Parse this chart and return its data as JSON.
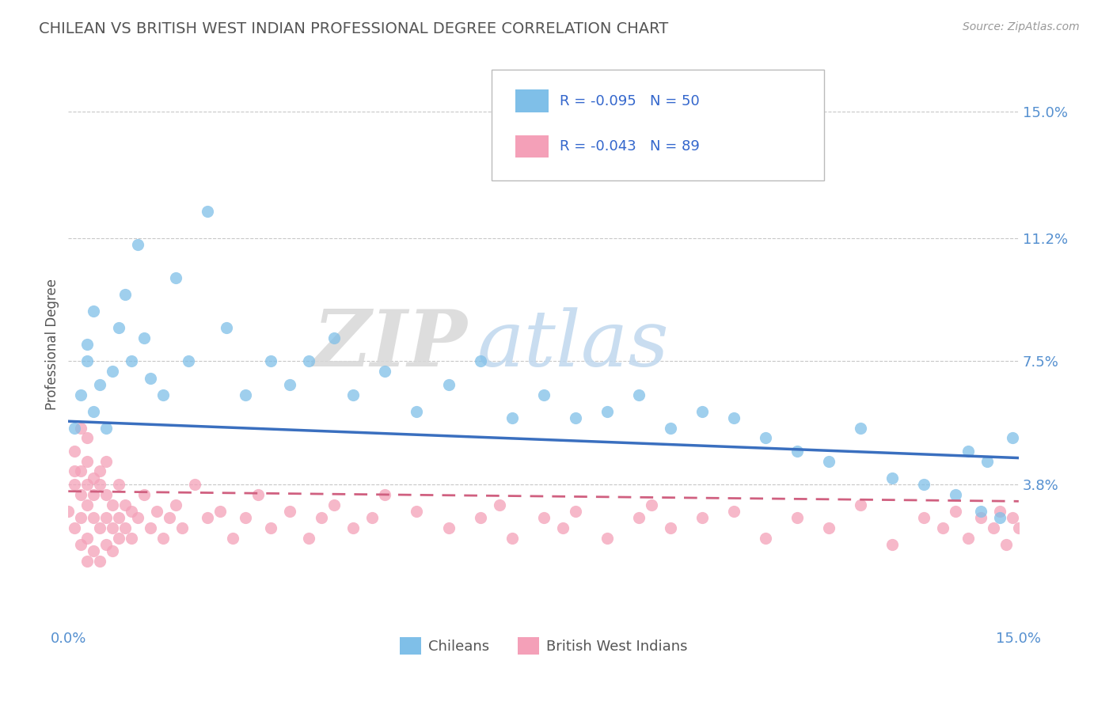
{
  "title": "CHILEAN VS BRITISH WEST INDIAN PROFESSIONAL DEGREE CORRELATION CHART",
  "source": "Source: ZipAtlas.com",
  "ylabel": "Professional Degree",
  "xlim": [
    0.0,
    0.15
  ],
  "ylim": [
    -0.005,
    0.165
  ],
  "yticks": [
    0.038,
    0.075,
    0.112,
    0.15
  ],
  "ytick_labels": [
    "3.8%",
    "7.5%",
    "11.2%",
    "15.0%"
  ],
  "xticks": [
    0.0,
    0.15
  ],
  "xtick_labels": [
    "0.0%",
    "15.0%"
  ],
  "chilean_color": "#7fbfe8",
  "bwi_color": "#f4a0b8",
  "chilean_line_color": "#3a6fbf",
  "bwi_line_color": "#d06080",
  "legend_r_chilean": "R = -0.095",
  "legend_n_chilean": "N = 50",
  "legend_r_bwi": "R = -0.043",
  "legend_n_bwi": "N = 89",
  "legend_label_chilean": "Chileans",
  "legend_label_bwi": "British West Indians",
  "chilean_x": [
    0.001,
    0.002,
    0.003,
    0.003,
    0.004,
    0.004,
    0.005,
    0.006,
    0.007,
    0.008,
    0.009,
    0.01,
    0.011,
    0.012,
    0.013,
    0.015,
    0.017,
    0.019,
    0.022,
    0.025,
    0.028,
    0.032,
    0.035,
    0.038,
    0.042,
    0.045,
    0.05,
    0.055,
    0.06,
    0.065,
    0.07,
    0.075,
    0.08,
    0.085,
    0.09,
    0.095,
    0.1,
    0.105,
    0.11,
    0.115,
    0.12,
    0.125,
    0.13,
    0.135,
    0.14,
    0.142,
    0.144,
    0.145,
    0.147,
    0.149
  ],
  "chilean_y": [
    0.055,
    0.065,
    0.08,
    0.075,
    0.09,
    0.06,
    0.068,
    0.055,
    0.072,
    0.085,
    0.095,
    0.075,
    0.11,
    0.082,
    0.07,
    0.065,
    0.1,
    0.075,
    0.12,
    0.085,
    0.065,
    0.075,
    0.068,
    0.075,
    0.082,
    0.065,
    0.072,
    0.06,
    0.068,
    0.075,
    0.058,
    0.065,
    0.058,
    0.06,
    0.065,
    0.055,
    0.06,
    0.058,
    0.052,
    0.048,
    0.045,
    0.055,
    0.04,
    0.038,
    0.035,
    0.048,
    0.03,
    0.045,
    0.028,
    0.052
  ],
  "bwi_x": [
    0.0,
    0.001,
    0.001,
    0.001,
    0.001,
    0.002,
    0.002,
    0.002,
    0.002,
    0.002,
    0.003,
    0.003,
    0.003,
    0.003,
    0.003,
    0.003,
    0.004,
    0.004,
    0.004,
    0.004,
    0.005,
    0.005,
    0.005,
    0.005,
    0.006,
    0.006,
    0.006,
    0.006,
    0.007,
    0.007,
    0.007,
    0.008,
    0.008,
    0.008,
    0.009,
    0.009,
    0.01,
    0.01,
    0.011,
    0.012,
    0.013,
    0.014,
    0.015,
    0.016,
    0.017,
    0.018,
    0.02,
    0.022,
    0.024,
    0.026,
    0.028,
    0.03,
    0.032,
    0.035,
    0.038,
    0.04,
    0.042,
    0.045,
    0.048,
    0.05,
    0.055,
    0.06,
    0.065,
    0.068,
    0.07,
    0.075,
    0.078,
    0.08,
    0.085,
    0.09,
    0.092,
    0.095,
    0.1,
    0.105,
    0.11,
    0.115,
    0.12,
    0.125,
    0.13,
    0.135,
    0.138,
    0.14,
    0.142,
    0.144,
    0.146,
    0.147,
    0.148,
    0.149,
    0.15
  ],
  "bwi_y": [
    0.03,
    0.038,
    0.042,
    0.025,
    0.048,
    0.035,
    0.028,
    0.042,
    0.02,
    0.055,
    0.032,
    0.045,
    0.022,
    0.038,
    0.015,
    0.052,
    0.028,
    0.04,
    0.018,
    0.035,
    0.025,
    0.038,
    0.015,
    0.042,
    0.028,
    0.035,
    0.02,
    0.045,
    0.025,
    0.032,
    0.018,
    0.028,
    0.038,
    0.022,
    0.032,
    0.025,
    0.03,
    0.022,
    0.028,
    0.035,
    0.025,
    0.03,
    0.022,
    0.028,
    0.032,
    0.025,
    0.038,
    0.028,
    0.03,
    0.022,
    0.028,
    0.035,
    0.025,
    0.03,
    0.022,
    0.028,
    0.032,
    0.025,
    0.028,
    0.035,
    0.03,
    0.025,
    0.028,
    0.032,
    0.022,
    0.028,
    0.025,
    0.03,
    0.022,
    0.028,
    0.032,
    0.025,
    0.028,
    0.03,
    0.022,
    0.028,
    0.025,
    0.032,
    0.02,
    0.028,
    0.025,
    0.03,
    0.022,
    0.028,
    0.025,
    0.03,
    0.02,
    0.028,
    0.025
  ],
  "background_color": "#ffffff",
  "grid_color": "#c8c8c8",
  "title_color": "#555555",
  "tick_color": "#5590d0",
  "legend_text_color": "#3366cc",
  "chi_line_y0": 0.057,
  "chi_line_y1": 0.046,
  "bwi_line_y0": 0.036,
  "bwi_line_y1": 0.033
}
